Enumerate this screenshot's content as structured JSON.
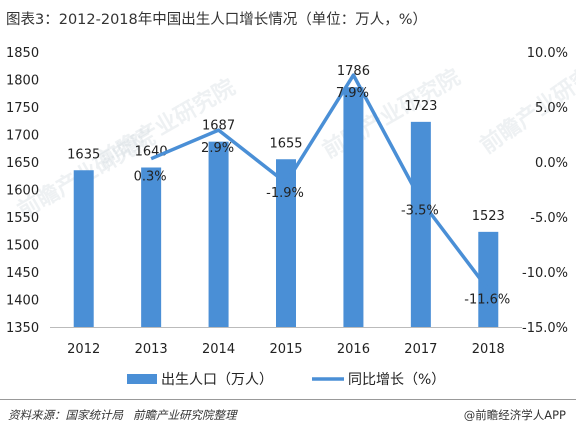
{
  "title": "图表3：2012-2018年中国出生人口增长情况（单位：万人，%）",
  "chart_data": {
    "type": "bar",
    "categories": [
      "2012",
      "2013",
      "2014",
      "2015",
      "2016",
      "2017",
      "2018"
    ],
    "series": [
      {
        "name": "出生人口（万人）",
        "type": "bar",
        "axis": "left",
        "values": [
          1635,
          1640,
          1687,
          1655,
          1786,
          1723,
          1523
        ],
        "labels": [
          "1635",
          "1640",
          "1687",
          "1655",
          "1786",
          "1723",
          "1523"
        ]
      },
      {
        "name": "同比增长（%）",
        "type": "line",
        "axis": "right",
        "x": [
          "2013",
          "2014",
          "2015",
          "2016",
          "2017",
          "2018"
        ],
        "values": [
          0.3,
          2.9,
          -1.9,
          7.9,
          -3.5,
          -11.6
        ],
        "labels": [
          "0.3%",
          "2.9%",
          "-1.9%",
          "7.9%",
          "-3.5%",
          "-11.6%"
        ]
      }
    ],
    "y_left": {
      "lim": [
        1350,
        1850
      ],
      "ticks": [
        "1350",
        "1400",
        "1450",
        "1500",
        "1550",
        "1600",
        "1650",
        "1700",
        "1750",
        "1800",
        "1850"
      ]
    },
    "y_right": {
      "lim": [
        -15,
        10
      ],
      "ticks": [
        "-15.0%",
        "-10.0%",
        "-5.0%",
        "0.0%",
        "5.0%",
        "10.0%"
      ]
    },
    "legend": "bottom",
    "grid": false,
    "colors": {
      "bar": "#4a8fd6",
      "line": "#4a8fd6"
    }
  },
  "watermark": "前瞻产业研究院",
  "source": {
    "label": "资料来源：国家统计局",
    "brand": "前瞻产业研究院整理"
  },
  "credit": "@前瞻经济学人APP"
}
